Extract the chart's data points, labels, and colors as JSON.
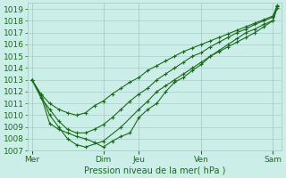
{
  "xlabel": "Pression niveau de la mer( hPa )",
  "bg_color": "#cceee8",
  "grid_color": "#aacccc",
  "line_color": "#1a6b1a",
  "ylim": [
    1007,
    1019.5
  ],
  "yticks": [
    1007,
    1008,
    1009,
    1010,
    1011,
    1012,
    1013,
    1014,
    1015,
    1016,
    1017,
    1018,
    1019
  ],
  "xtick_labels": [
    "Mer",
    "Dim",
    "Jeu",
    "Ven",
    "Sam"
  ],
  "xtick_positions": [
    0,
    8,
    12,
    19,
    27
  ],
  "xmin": -0.5,
  "xmax": 28,
  "vlines": [
    0,
    8,
    12,
    19,
    27
  ],
  "series1_x": [
    0,
    1,
    2,
    3,
    4,
    5,
    6,
    7,
    8,
    9,
    10,
    11,
    12,
    13,
    14,
    15,
    16,
    17,
    18,
    19,
    20,
    21,
    22,
    23,
    24,
    25,
    26,
    27,
    27.5
  ],
  "series1_y": [
    1013.0,
    1011.8,
    1011.0,
    1010.5,
    1010.2,
    1010.0,
    1010.2,
    1010.8,
    1011.2,
    1011.8,
    1012.3,
    1012.8,
    1013.2,
    1013.8,
    1014.2,
    1014.6,
    1015.0,
    1015.4,
    1015.7,
    1016.0,
    1016.3,
    1016.6,
    1016.9,
    1017.2,
    1017.5,
    1017.8,
    1018.1,
    1018.4,
    1019.2
  ],
  "series2_x": [
    0,
    1,
    2,
    3,
    4,
    5,
    6,
    7,
    8,
    9,
    10,
    11,
    12,
    13,
    14,
    15,
    16,
    17,
    18,
    19,
    20,
    21,
    22,
    23,
    24,
    25,
    26,
    27,
    27.5
  ],
  "series2_y": [
    1013.0,
    1011.5,
    1010.5,
    1009.5,
    1008.8,
    1008.5,
    1008.5,
    1008.8,
    1009.2,
    1009.8,
    1010.5,
    1011.2,
    1011.8,
    1012.3,
    1013.0,
    1013.5,
    1014.0,
    1014.5,
    1015.0,
    1015.3,
    1015.8,
    1016.2,
    1016.6,
    1017.0,
    1017.3,
    1017.7,
    1018.0,
    1018.3,
    1019.3
  ],
  "series3_x": [
    0,
    1,
    2,
    3,
    4,
    5,
    6,
    8,
    10,
    12,
    13,
    14,
    15,
    16,
    17,
    18,
    19,
    20,
    21,
    22,
    23,
    24,
    25,
    26,
    27,
    27.5
  ],
  "series3_y": [
    1013.0,
    1011.8,
    1010.0,
    1009.0,
    1008.0,
    1007.5,
    1007.3,
    1007.8,
    1009.0,
    1010.5,
    1011.2,
    1012.0,
    1012.5,
    1013.0,
    1013.5,
    1014.0,
    1014.5,
    1015.0,
    1015.4,
    1015.8,
    1016.2,
    1016.6,
    1017.0,
    1017.5,
    1018.0,
    1019.1
  ],
  "series4_x": [
    0,
    1,
    2,
    3,
    4,
    5,
    6,
    7,
    8,
    9,
    10,
    11,
    12,
    13,
    14,
    15,
    16,
    17,
    18,
    19,
    20,
    21,
    22,
    23,
    24,
    25,
    26,
    27,
    27.5
  ],
  "series4_y": [
    1013.0,
    1011.7,
    1009.3,
    1008.8,
    1008.5,
    1008.2,
    1008.0,
    1007.7,
    1007.3,
    1007.8,
    1008.2,
    1008.5,
    1009.8,
    1010.5,
    1011.0,
    1012.0,
    1012.8,
    1013.2,
    1013.8,
    1014.3,
    1015.0,
    1015.5,
    1016.0,
    1016.5,
    1017.0,
    1017.3,
    1017.7,
    1018.0,
    1019.2
  ],
  "fontsize": 6.5
}
